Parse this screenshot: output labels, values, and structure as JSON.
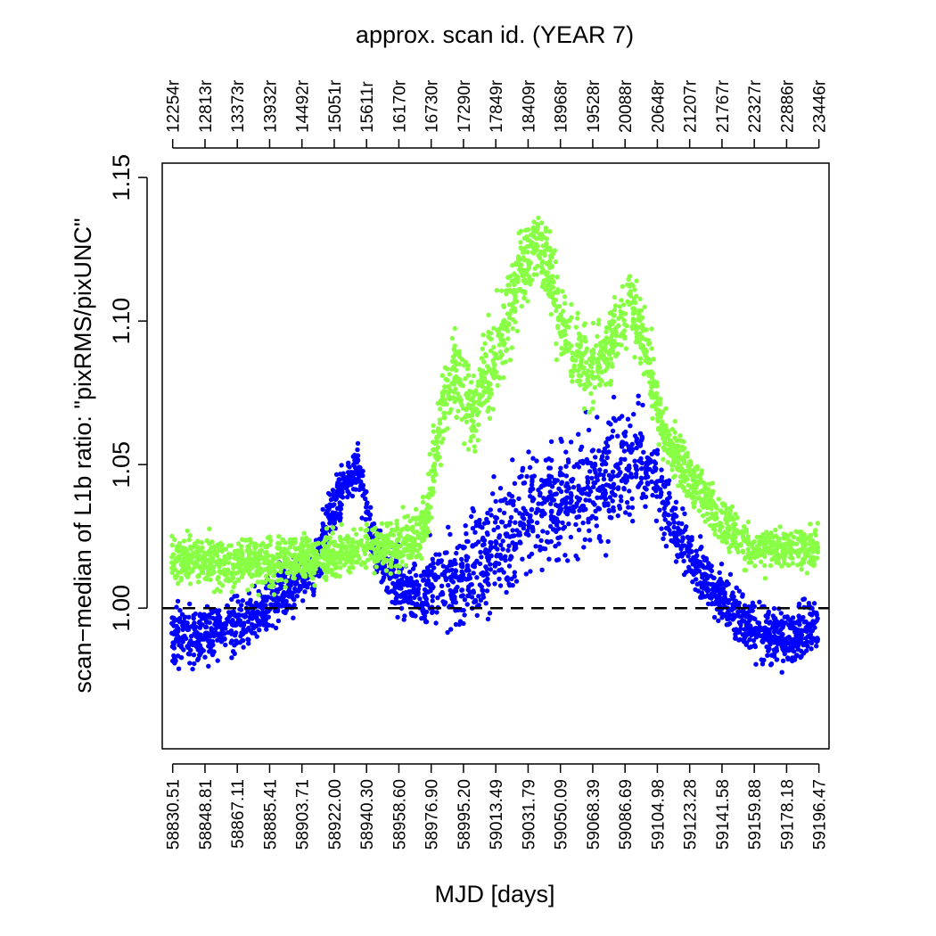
{
  "chart_data": {
    "type": "scatter",
    "title": "approx. scan id. (YEAR 7)",
    "xlabel": "MJD [days]",
    "ylabel": "scan−median of L1b ratio: \"pixRMS/pixUNC\"",
    "xlim": [
      58824.6,
      59202.2
    ],
    "ylim": [
      0.951,
      1.155
    ],
    "grid": false,
    "legend": "none",
    "x_tick_values": [
      58830.51,
      58848.81,
      58867.11,
      58885.41,
      58903.71,
      58922.0,
      58940.3,
      58958.6,
      58976.9,
      58995.2,
      59013.49,
      59031.79,
      59050.09,
      59068.39,
      59086.69,
      59104.98,
      59123.28,
      59141.58,
      59159.88,
      59178.18,
      59196.47
    ],
    "x_tick_labels": [
      "58830.51",
      "58848.81",
      "58867.11",
      "58885.41",
      "58903.71",
      "58922.00",
      "58940.30",
      "58958.60",
      "58976.90",
      "58995.20",
      "59013.49",
      "59031.79",
      "59050.09",
      "59068.39",
      "59086.69",
      "59104.98",
      "59123.28",
      "59141.58",
      "59159.88",
      "59178.18",
      "59196.47"
    ],
    "top_tick_labels": [
      "12254r",
      "12813r",
      "13373r",
      "13932r",
      "14492r",
      "15051r",
      "15611r",
      "16170r",
      "16730r",
      "17290r",
      "17849r",
      "18409r",
      "18968r",
      "19528r",
      "20088r",
      "20648r",
      "21207r",
      "21767r",
      "22327r",
      "22886r",
      "23446r"
    ],
    "y_ticks": [
      1.0,
      1.05,
      1.1,
      1.15
    ],
    "y_tick_labels": [
      "1.00",
      "1.05",
      "1.10",
      "1.15"
    ],
    "reference_line": {
      "y": 1.0,
      "style": "dashed"
    },
    "series": [
      {
        "color": "#0000ff",
        "x": [
          58830,
          58840,
          58850,
          58860,
          58870,
          58880,
          58890,
          58900,
          58910,
          58918,
          58925,
          58930,
          58935,
          58940,
          58945,
          58950,
          58960,
          58970,
          58980,
          58990,
          59000,
          59010,
          59020,
          59030,
          59040,
          59050,
          59060,
          59070,
          59080,
          59090,
          59095,
          59100,
          59105,
          59110,
          59115,
          59120,
          59130,
          59140,
          59150,
          59160,
          59170,
          59180,
          59190,
          59196
        ],
        "y": [
          0.992,
          0.989,
          0.991,
          0.993,
          0.995,
          0.998,
          1.003,
          1.008,
          1.012,
          1.03,
          1.04,
          1.045,
          1.048,
          1.035,
          1.022,
          1.015,
          1.008,
          1.005,
          1.01,
          1.008,
          1.012,
          1.018,
          1.025,
          1.032,
          1.036,
          1.038,
          1.04,
          1.042,
          1.045,
          1.05,
          1.052,
          1.05,
          1.045,
          1.035,
          1.028,
          1.022,
          1.012,
          1.005,
          0.998,
          0.993,
          0.991,
          0.99,
          0.992,
          0.994
        ],
        "spread": [
          0.01,
          0.01,
          0.01,
          0.01,
          0.009,
          0.01,
          0.01,
          0.008,
          0.008,
          0.008,
          0.008,
          0.007,
          0.007,
          0.008,
          0.008,
          0.008,
          0.01,
          0.012,
          0.015,
          0.016,
          0.018,
          0.018,
          0.02,
          0.02,
          0.02,
          0.02,
          0.02,
          0.02,
          0.02,
          0.018,
          0.015,
          0.012,
          0.012,
          0.012,
          0.01,
          0.01,
          0.009,
          0.009,
          0.01,
          0.01,
          0.01,
          0.01,
          0.01,
          0.01
        ]
      },
      {
        "color": "#88ff44",
        "x": [
          58830,
          58840,
          58850,
          58860,
          58870,
          58880,
          58890,
          58900,
          58910,
          58920,
          58930,
          58940,
          58950,
          58960,
          58970,
          58975,
          58980,
          58985,
          58990,
          58995,
          59000,
          59005,
          59010,
          59015,
          59020,
          59025,
          59030,
          59035,
          59040,
          59045,
          59050,
          59055,
          59060,
          59065,
          59070,
          59075,
          59080,
          59085,
          59090,
          59095,
          59100,
          59105,
          59110,
          59120,
          59130,
          59140,
          59150,
          59160,
          59170,
          59180,
          59190,
          59196
        ],
        "y": [
          1.018,
          1.017,
          1.016,
          1.015,
          1.016,
          1.015,
          1.016,
          1.017,
          1.018,
          1.018,
          1.02,
          1.022,
          1.02,
          1.023,
          1.025,
          1.035,
          1.055,
          1.075,
          1.085,
          1.075,
          1.07,
          1.075,
          1.085,
          1.09,
          1.1,
          1.112,
          1.122,
          1.128,
          1.124,
          1.115,
          1.1,
          1.09,
          1.088,
          1.082,
          1.085,
          1.09,
          1.095,
          1.102,
          1.105,
          1.098,
          1.085,
          1.07,
          1.06,
          1.048,
          1.04,
          1.032,
          1.025,
          1.02,
          1.02,
          1.021,
          1.02,
          1.021
        ],
        "spread": [
          0.008,
          0.008,
          0.008,
          0.008,
          0.008,
          0.008,
          0.008,
          0.008,
          0.008,
          0.008,
          0.008,
          0.008,
          0.008,
          0.008,
          0.008,
          0.01,
          0.012,
          0.015,
          0.015,
          0.015,
          0.015,
          0.015,
          0.016,
          0.016,
          0.018,
          0.016,
          0.014,
          0.012,
          0.012,
          0.014,
          0.015,
          0.015,
          0.014,
          0.014,
          0.013,
          0.013,
          0.013,
          0.013,
          0.012,
          0.012,
          0.012,
          0.01,
          0.01,
          0.009,
          0.009,
          0.009,
          0.008,
          0.008,
          0.008,
          0.008,
          0.008,
          0.008
        ]
      }
    ]
  }
}
